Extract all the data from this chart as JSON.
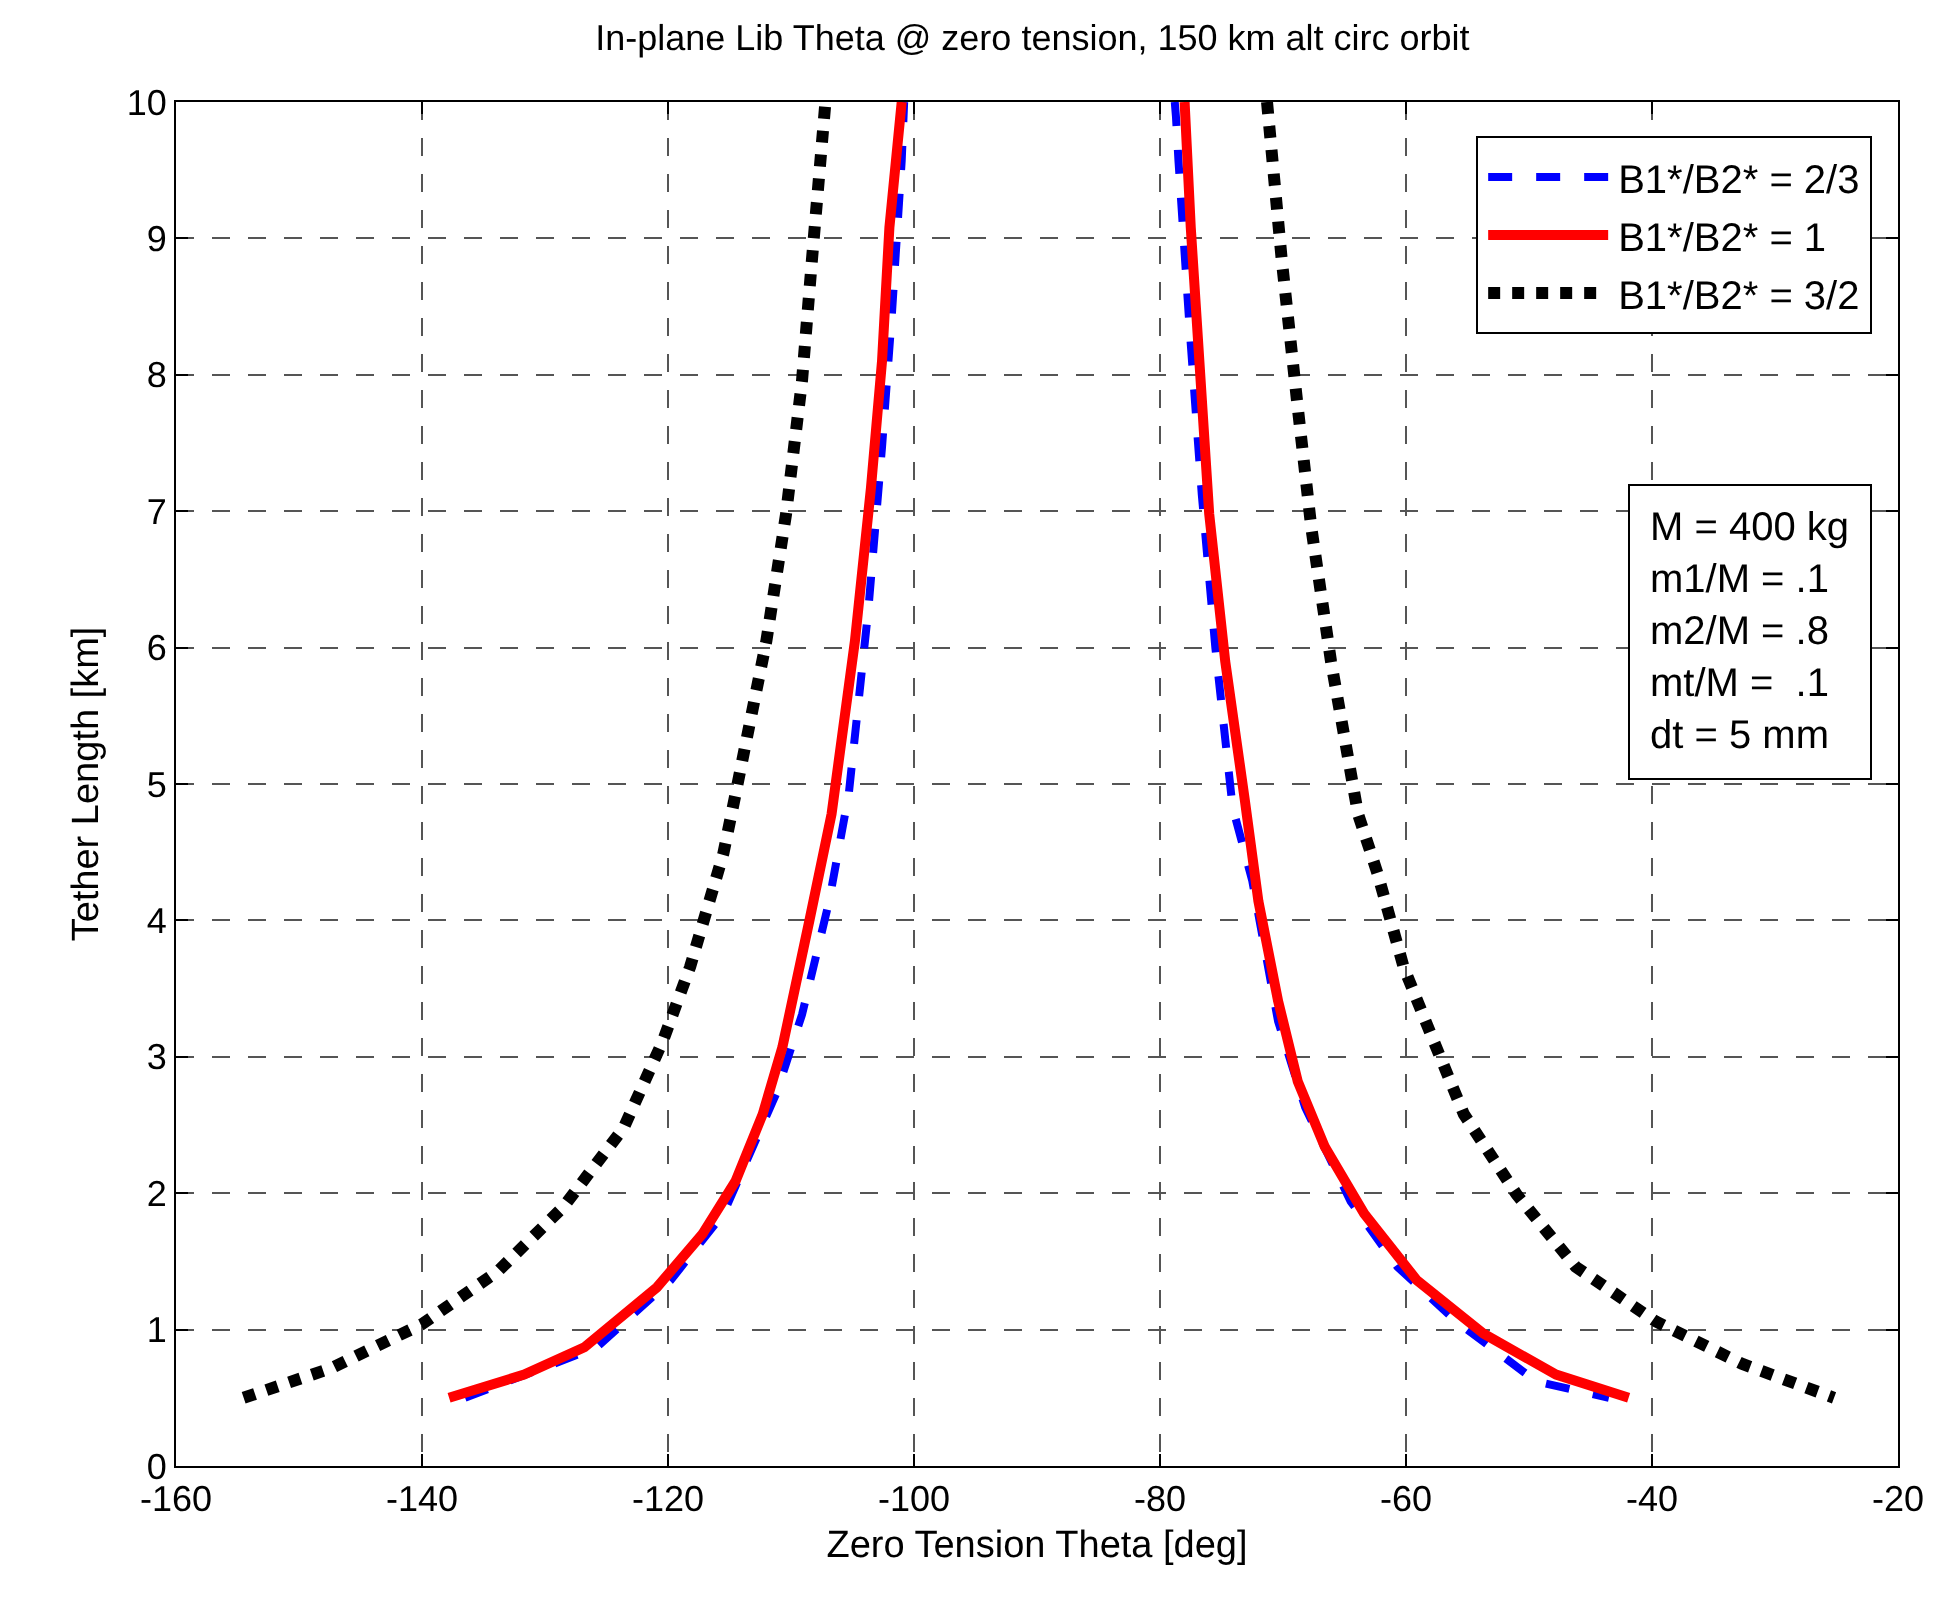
{
  "chart_data": {
    "type": "line",
    "title": "In-plane Lib Theta @ zero tension, 150 km alt circ orbit",
    "xlabel": "Zero Tension Theta [deg]",
    "ylabel": "Tether Length [km]",
    "xlim": [
      -160,
      -20
    ],
    "xticks": [
      -160,
      -140,
      -120,
      -100,
      -80,
      -60,
      -40,
      -20
    ],
    "ylim": [
      0,
      10
    ],
    "yticks": [
      0,
      1,
      2,
      3,
      4,
      5,
      6,
      7,
      8,
      9,
      10
    ],
    "grid": true,
    "legend": "top right",
    "series": [
      {
        "name": "B1*/B2* = 2/3",
        "color": "#0000ff",
        "line_style": "dashed",
        "x": [
          -136.5,
          -125.8,
          -119.8,
          -115.5,
          -111.2,
          -109.1,
          -106.9,
          -105.3,
          -103.7,
          -102.6,
          -101.8,
          -101.0,
          -100.8,
          null,
          -78.8,
          -78.7,
          -78.5,
          -77.6,
          -76.6,
          -75.5,
          -74.1,
          -72.5,
          -70.4,
          -68.2,
          -64.5,
          -60.7,
          -55.9,
          -49.4,
          -43.5
        ],
        "values": [
          0.5,
          0.87,
          1.36,
          1.85,
          2.73,
          3.31,
          4.14,
          4.93,
          6.29,
          7.47,
          8.44,
          9.57,
          10,
          null,
          10,
          9.89,
          9.57,
          8.35,
          7.12,
          6.0,
          4.83,
          4.29,
          3.26,
          2.63,
          1.94,
          1.46,
          1.06,
          0.62,
          0.5
        ]
      },
      {
        "name": "B1*/B2* = 1",
        "color": "#ff0000",
        "line_style": "solid",
        "x": [
          -137.8,
          -131.7,
          -126.8,
          -120.9,
          -117.2,
          -114.5,
          -112.3,
          -110.7,
          -108.5,
          -106.7,
          -104.8,
          -103.5,
          -102.6,
          -102.0,
          -101.0,
          null,
          -78.0,
          -77.5,
          -76.8,
          -76.0,
          -74.7,
          -73.1,
          -72.0,
          -70.4,
          -68.8,
          -66.6,
          -63.4,
          -59.1,
          -53.7,
          -47.8,
          -41.9
        ],
        "values": [
          0.5,
          0.67,
          0.87,
          1.31,
          1.7,
          2.09,
          2.58,
          3.07,
          4.0,
          4.78,
          6.05,
          7.17,
          8.1,
          9.08,
          10,
          null,
          10,
          9.08,
          8.1,
          6.98,
          5.9,
          4.88,
          4.14,
          3.41,
          2.82,
          2.34,
          1.85,
          1.36,
          0.97,
          0.67,
          0.5
        ]
      },
      {
        "name": "B1*/B2* = 3/2",
        "color": "#000000",
        "line_style": "dotted",
        "x": [
          -154.5,
          -147.3,
          -140.0,
          -133.8,
          -128.5,
          -123.6,
          -120.4,
          -118.2,
          -115.5,
          -114.5,
          -112.0,
          -110.4,
          -109.1,
          -108.3,
          -107.2,
          null,
          -71.3,
          -70.1,
          -68.8,
          -67.7,
          -66.1,
          -63.9,
          -62.3,
          -60.2,
          -58.0,
          -55.3,
          -51.0,
          -46.2,
          -39.7,
          -32.7,
          -25.2
        ],
        "values": [
          0.5,
          0.72,
          1.04,
          1.43,
          1.9,
          2.48,
          3.12,
          3.66,
          4.49,
          4.93,
          6.05,
          6.98,
          7.96,
          8.84,
          10,
          null,
          10,
          8.84,
          7.76,
          6.88,
          5.9,
          4.78,
          4.34,
          3.66,
          3.17,
          2.58,
          1.99,
          1.46,
          1.06,
          0.75,
          0.5
        ]
      }
    ],
    "annotations": [
      "M = 400 kg\nm1/M = .1\nm2/M = .8\nmt/M =  .1\ndt = 5 mm"
    ]
  }
}
